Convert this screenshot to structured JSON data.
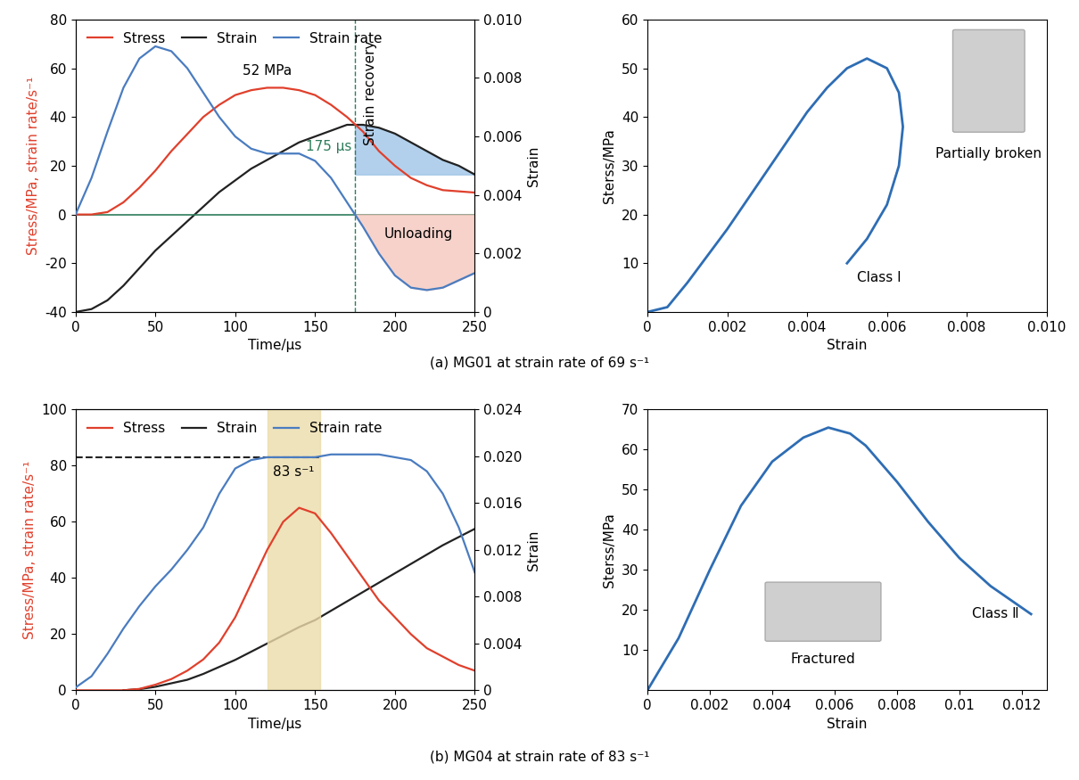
{
  "chart_data": [
    {
      "type": "line",
      "caption": "(a) MG01 at strain rate of 69 s⁻¹",
      "xlabel": "Time/μs",
      "ylabel": "Stress/MPa, strain rate/s⁻¹",
      "y2label": "Strain",
      "xlim": [
        0,
        250
      ],
      "xticks": [
        0,
        50,
        100,
        150,
        200,
        250
      ],
      "ylim": [
        -40,
        80
      ],
      "yticks": [
        -40,
        -20,
        0,
        20,
        40,
        60,
        80
      ],
      "y2lim": [
        0,
        0.01
      ],
      "y2ticks": [
        0,
        0.002,
        0.004,
        0.006,
        0.008,
        {
          "value": 0.01,
          "label": "0.010"
        }
      ],
      "legend": "upper left",
      "x": [
        0,
        10,
        20,
        30,
        40,
        50,
        60,
        70,
        80,
        90,
        100,
        110,
        120,
        130,
        140,
        150,
        160,
        170,
        175,
        180,
        190,
        200,
        210,
        220,
        230,
        240,
        250
      ],
      "series": [
        {
          "name": "Stress",
          "color": "#e0402c",
          "values": [
            0,
            0,
            1,
            5,
            11,
            18,
            26,
            33,
            40,
            45,
            49,
            51,
            52,
            52,
            51,
            49,
            45,
            40,
            37,
            34,
            26,
            20,
            15,
            12,
            10,
            9.5,
            9
          ]
        },
        {
          "name": "Strain",
          "color": "#222222",
          "axis": "y2",
          "values": [
            0,
            0.0001,
            0.0004,
            0.0009,
            0.0015,
            0.0021,
            0.0026,
            0.0031,
            0.0036,
            0.0041,
            0.0045,
            0.0049,
            0.0052,
            0.0055,
            0.0058,
            0.006,
            0.0062,
            0.0064,
            0.0064,
            0.0064,
            0.0063,
            0.0061,
            0.0058,
            0.0055,
            0.0052,
            0.005,
            0.0047
          ]
        },
        {
          "name": "Strain rate",
          "color": "#4a7cc0",
          "values": [
            0,
            15,
            34,
            52,
            64,
            69,
            67,
            60,
            50,
            40,
            32,
            27,
            25,
            25,
            25,
            22,
            15,
            5,
            0,
            -5,
            -16,
            -25,
            -30,
            -31,
            -30,
            -27,
            -24
          ]
        }
      ],
      "peak_label": "52 MPa",
      "unloading_time": 175,
      "unloading_time_label": "175 μs",
      "annotations": [
        "Strain recovery",
        "Unloading"
      ]
    },
    {
      "type": "line",
      "xlabel": "Strain",
      "ylabel": "Sterss/MPa",
      "xlim": [
        0,
        0.01
      ],
      "xticks": [
        0,
        0.002,
        0.004,
        0.006,
        0.008,
        {
          "value": 0.01,
          "label": "0.010"
        }
      ],
      "ylim": [
        0,
        60
      ],
      "yticks": [
        10,
        20,
        30,
        40,
        50,
        60
      ],
      "series": [
        {
          "name": "Class Ⅰ",
          "color": "#2e6db4",
          "x": [
            0,
            0.0005,
            0.001,
            0.002,
            0.003,
            0.004,
            0.0045,
            0.005,
            0.0055,
            0.006,
            0.0063,
            0.0064,
            0.0063,
            0.006,
            0.0055,
            0.005
          ],
          "values": [
            0,
            1,
            6,
            17,
            29,
            41,
            46,
            50,
            52,
            50,
            45,
            38,
            30,
            22,
            15,
            10
          ]
        }
      ],
      "photo_label": "Partially broken"
    },
    {
      "type": "line",
      "caption": "(b) MG04 at strain rate of 83 s⁻¹",
      "xlabel": "Time/μs",
      "ylabel": "Stress/MPa, strain rate/s⁻¹",
      "y2label": "Strain",
      "xlim": [
        0,
        250
      ],
      "xticks": [
        0,
        50,
        100,
        150,
        200,
        250
      ],
      "ylim": [
        0,
        100
      ],
      "yticks": [
        0,
        20,
        40,
        60,
        80,
        100
      ],
      "y2lim": [
        0,
        0.024
      ],
      "y2ticks": [
        0,
        0.004,
        0.008,
        0.012,
        0.016,
        {
          "value": 0.02,
          "label": "0.020"
        },
        0.024
      ],
      "legend": "upper left",
      "x": [
        0,
        10,
        20,
        30,
        40,
        50,
        60,
        70,
        80,
        90,
        100,
        110,
        120,
        130,
        140,
        150,
        160,
        170,
        180,
        190,
        200,
        210,
        220,
        230,
        240,
        250
      ],
      "series": [
        {
          "name": "Stress",
          "color": "#e0402c",
          "values": [
            0,
            0,
            0,
            0,
            0.5,
            2,
            4,
            7,
            11,
            17,
            26,
            38,
            50,
            60,
            65,
            63,
            56,
            48,
            40,
            32,
            26,
            20,
            15,
            12,
            9,
            7
          ]
        },
        {
          "name": "Strain",
          "color": "#222222",
          "axis": "y2",
          "values": [
            null,
            null,
            null,
            0,
            0.0001,
            0.0003,
            0.0006,
            0.0009,
            0.0014,
            0.002,
            0.0026,
            0.0033,
            0.004,
            0.0047,
            0.0054,
            0.006,
            0.0068,
            0.0076,
            0.0084,
            0.0092,
            0.01,
            0.0108,
            0.0116,
            0.0124,
            0.0131,
            0.0138
          ]
        },
        {
          "name": "Strain rate",
          "color": "#4a7cc0",
          "values": [
            1,
            5,
            13,
            22,
            30,
            37,
            43,
            50,
            58,
            70,
            79,
            82,
            83,
            83,
            83,
            83,
            84,
            84,
            84,
            84,
            83,
            82,
            78,
            70,
            58,
            42
          ]
        }
      ],
      "highlight": [
        120,
        153
      ],
      "reference_rate": 83,
      "reference_rate_label": "83 s⁻¹"
    },
    {
      "type": "line",
      "xlabel": "Strain",
      "ylabel": "Sterss/MPa",
      "xlim": [
        0,
        0.0128
      ],
      "xticks": [
        0,
        0.002,
        0.004,
        0.006,
        0.008,
        0.01,
        0.012
      ],
      "ylim": [
        0,
        70
      ],
      "yticks": [
        10,
        20,
        30,
        40,
        50,
        60,
        70
      ],
      "series": [
        {
          "name": "Class Ⅱ",
          "color": "#2e6db4",
          "x": [
            0,
            0.001,
            0.002,
            0.003,
            0.004,
            0.005,
            0.0058,
            0.0065,
            0.007,
            0.008,
            0.009,
            0.01,
            0.011,
            0.0123
          ],
          "values": [
            0,
            13,
            30,
            46,
            57,
            63,
            65.5,
            64,
            61,
            52,
            42,
            33,
            26,
            19
          ]
        }
      ],
      "photo_label": "Fractured"
    }
  ]
}
